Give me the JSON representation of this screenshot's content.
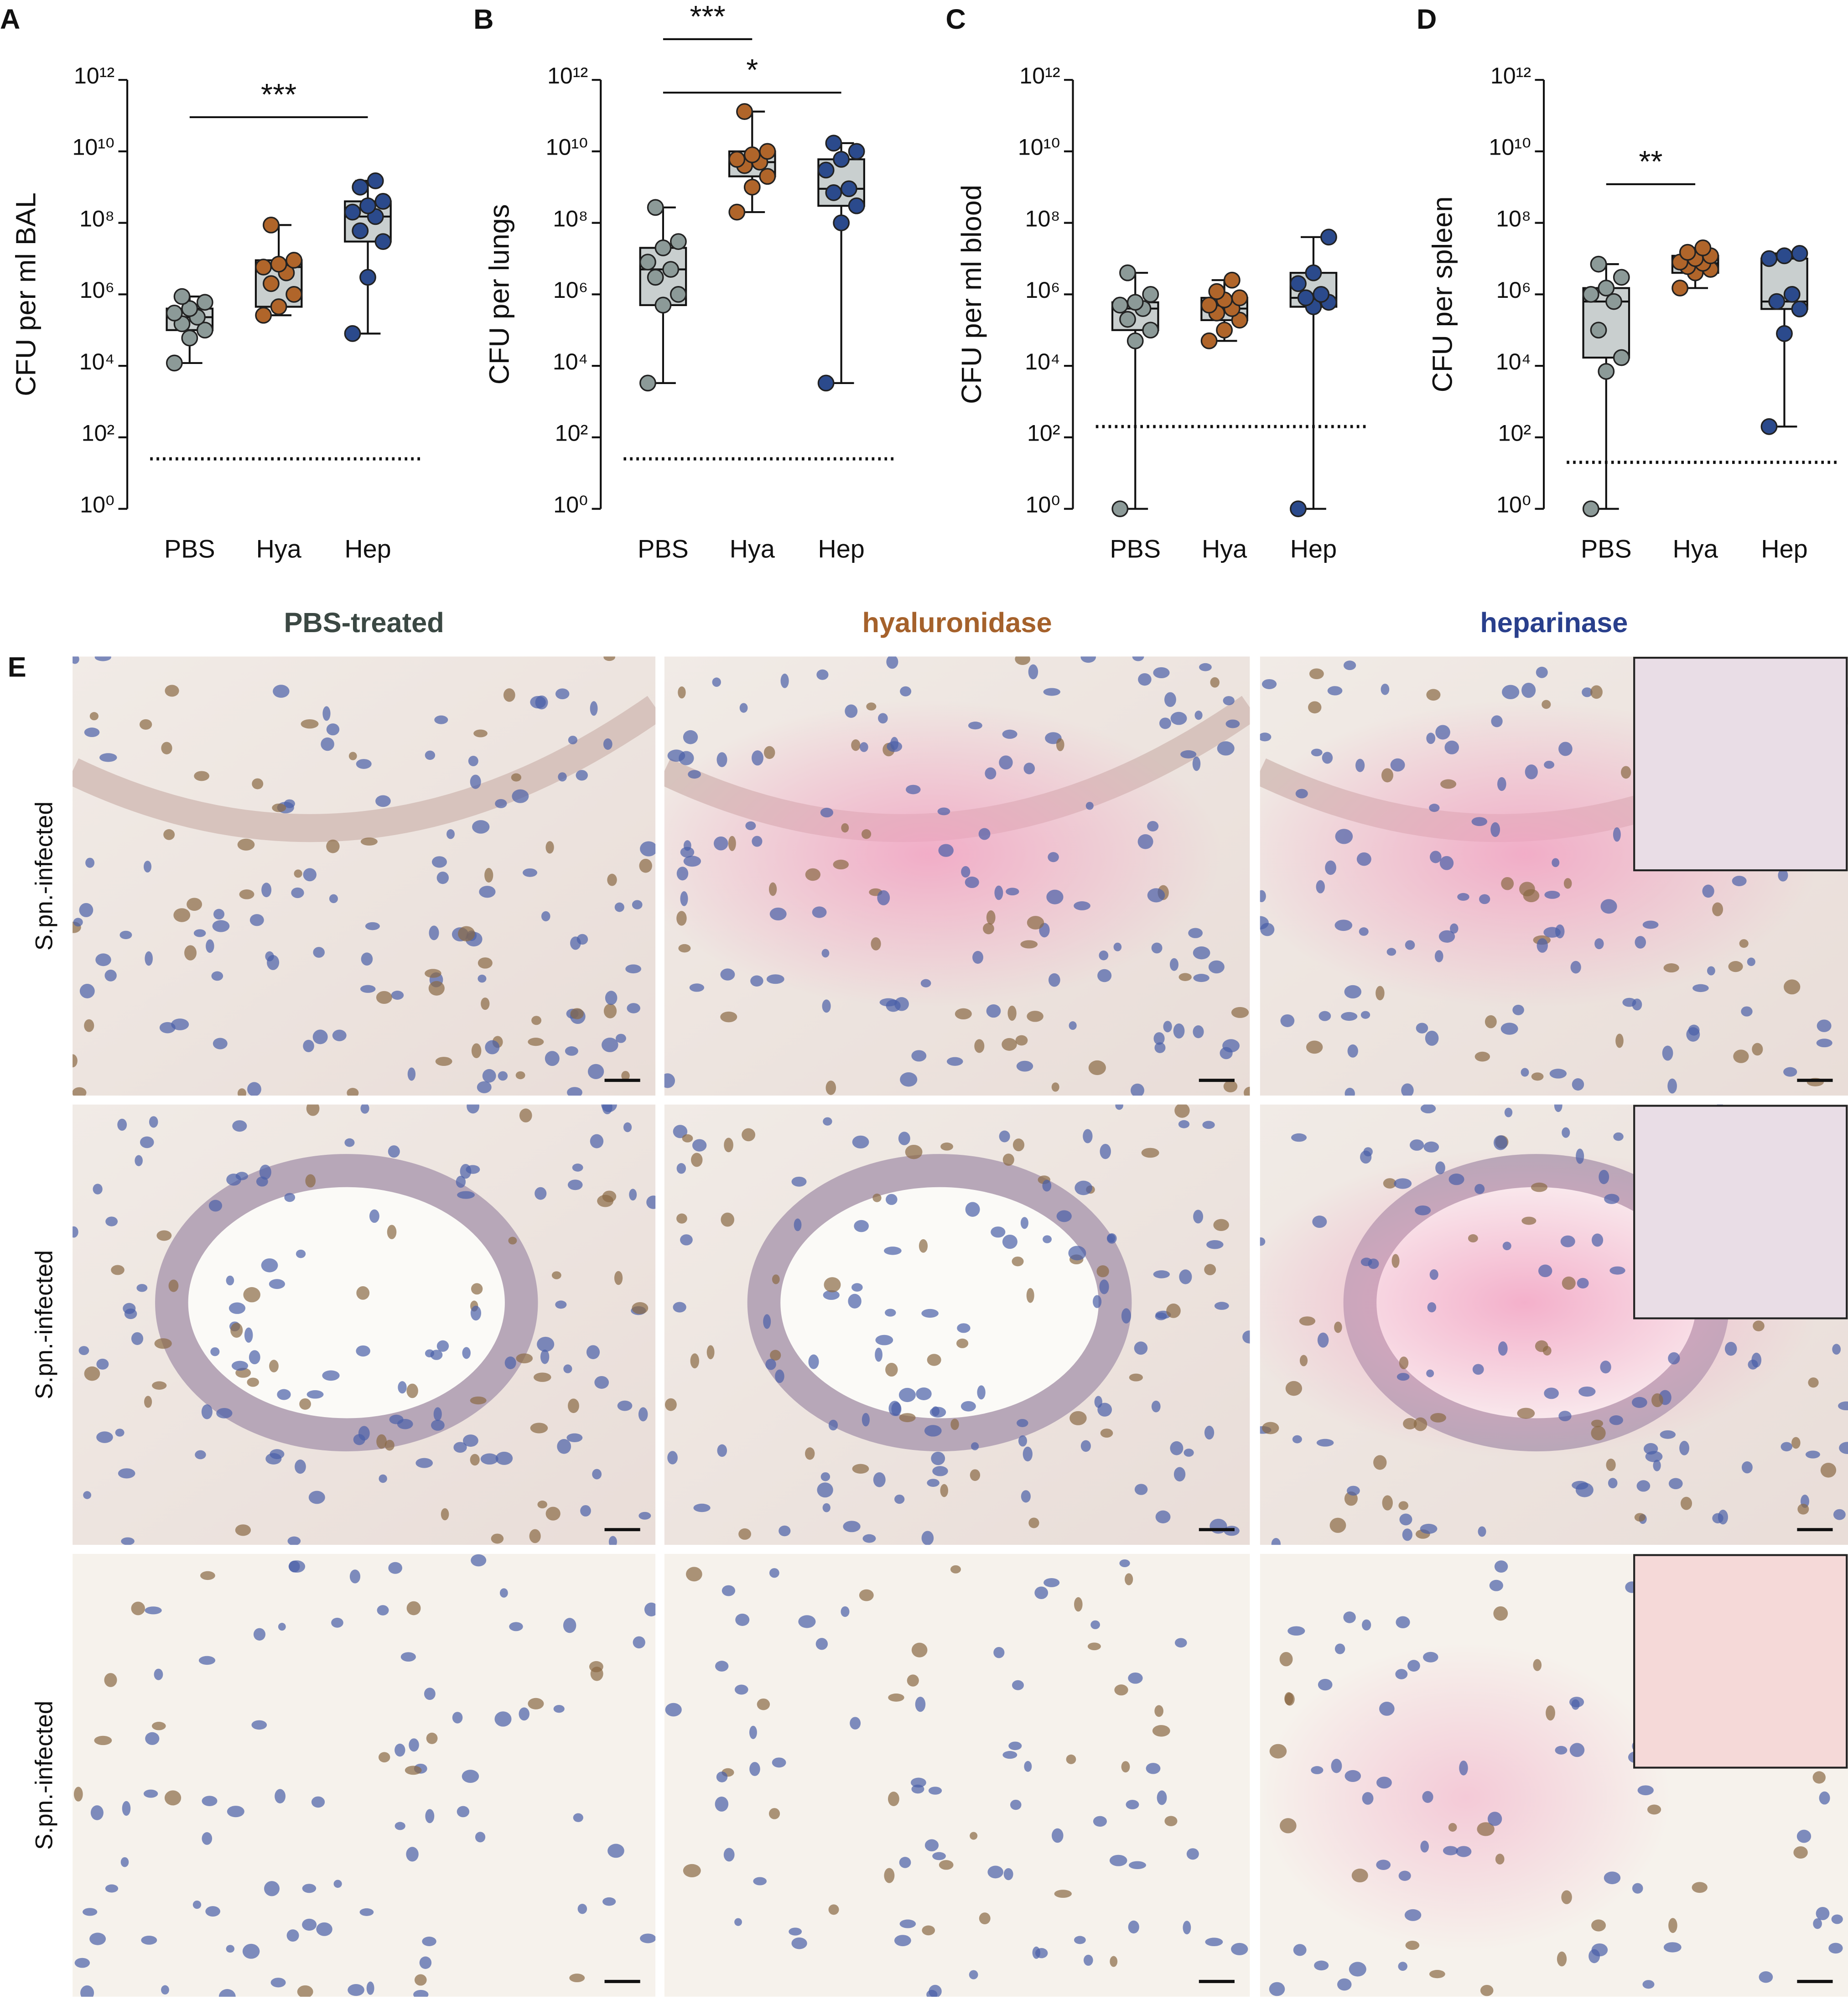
{
  "chart_data": [
    {
      "type": "box",
      "panel": "A",
      "y_label": "CFU per ml BAL",
      "categories": [
        "PBS",
        "Hya",
        "Hep"
      ],
      "colors": [
        "#8c9a98",
        "#b0652a",
        "#2b4a8c"
      ],
      "box_color": "#c9cfcf",
      "log_scale": true,
      "ylim": [
        1,
        1000000000000.0
      ],
      "yticks": [
        {
          "value": 1,
          "label": "10⁰"
        },
        {
          "value": 100.0,
          "label": "10²"
        },
        {
          "value": 10000.0,
          "label": "10⁴"
        },
        {
          "value": 1000000.0,
          "label": "10⁶"
        },
        {
          "value": 100000000.0,
          "label": "10⁸"
        },
        {
          "value": 10000000000.0,
          "label": "10¹⁰"
        },
        {
          "value": 1000000000000.0,
          "label": "10¹²"
        }
      ],
      "detection_limit": 25,
      "significance": [
        {
          "from": "PBS",
          "to": "Hep",
          "label": "***"
        }
      ],
      "boxes": [
        {
          "min": 12000.0,
          "q1": 100000.0,
          "median": 230000.0,
          "q3": 400000.0,
          "max": 870000.0,
          "points": [
            12000.0,
            60000.0,
            100000.0,
            150000.0,
            230000.0,
            300000.0,
            400000.0,
            600000.0,
            870000.0
          ]
        },
        {
          "min": 260000.0,
          "q1": 450000.0,
          "median": 5800000.0,
          "q3": 9000000.0,
          "max": 87000000.0,
          "points": [
            260000.0,
            450000.0,
            1000000.0,
            2000000.0,
            4000000.0,
            5800000.0,
            7000000.0,
            9000000.0,
            87000000.0
          ]
        },
        {
          "min": 80000.0,
          "q1": 30000000.0,
          "median": 150000000.0,
          "q3": 400000000.0,
          "max": 1500000000.0,
          "points": [
            80000.0,
            3000000.0,
            30000000.0,
            60000000.0,
            150000000.0,
            200000000.0,
            300000000.0,
            400000000.0,
            1000000000.0,
            1500000000.0
          ]
        }
      ]
    },
    {
      "type": "box",
      "panel": "B",
      "y_label": "CFU per lungs",
      "categories": [
        "PBS",
        "Hya",
        "Hep"
      ],
      "colors": [
        "#8c9a98",
        "#b0652a",
        "#2b4a8c"
      ],
      "box_color": "#c9cfcf",
      "log_scale": true,
      "ylim": [
        1,
        1000000000000.0
      ],
      "yticks": [
        {
          "value": 1,
          "label": "10⁰"
        },
        {
          "value": 100.0,
          "label": "10²"
        },
        {
          "value": 10000.0,
          "label": "10⁴"
        },
        {
          "value": 1000000.0,
          "label": "10⁶"
        },
        {
          "value": 100000000.0,
          "label": "10⁸"
        },
        {
          "value": 10000000000.0,
          "label": "10¹⁰"
        },
        {
          "value": 1000000000000.0,
          "label": "10¹²"
        }
      ],
      "detection_limit": 25,
      "significance": [
        {
          "from": "PBS",
          "to": "Hep",
          "label": "*"
        },
        {
          "from": "PBS",
          "to": "Hya",
          "label": "***"
        }
      ],
      "boxes": [
        {
          "min": 3300.0,
          "q1": 500000.0,
          "median": 5000000.0,
          "q3": 20000000.0,
          "max": 270000000.0,
          "points": [
            3300.0,
            500000.0,
            1000000.0,
            3000000.0,
            5000000.0,
            8000000.0,
            20000000.0,
            30000000.0,
            270000000.0
          ]
        },
        {
          "min": 200000000.0,
          "q1": 2000000000.0,
          "median": 5000000000.0,
          "q3": 10000000000.0,
          "max": 130000000000.0,
          "points": [
            200000000.0,
            1000000000.0,
            2000000000.0,
            4000000000.0,
            5000000000.0,
            6000000000.0,
            8000000000.0,
            10000000000.0,
            130000000000.0
          ]
        },
        {
          "min": 3300.0,
          "q1": 300000000.0,
          "median": 900000000.0,
          "q3": 6000000000.0,
          "max": 17000000000.0,
          "points": [
            3300.0,
            100000000.0,
            300000000.0,
            700000000.0,
            900000000.0,
            3000000000.0,
            6000000000.0,
            10000000000.0,
            17000000000.0
          ]
        }
      ]
    },
    {
      "type": "box",
      "panel": "C",
      "y_label": "CFU per ml blood",
      "categories": [
        "PBS",
        "Hya",
        "Hep"
      ],
      "colors": [
        "#8c9a98",
        "#b0652a",
        "#2b4a8c"
      ],
      "box_color": "#c9cfcf",
      "log_scale": true,
      "ylim": [
        1,
        1000000000000.0
      ],
      "yticks": [
        {
          "value": 1,
          "label": "10⁰"
        },
        {
          "value": 100.0,
          "label": "10²"
        },
        {
          "value": 10000.0,
          "label": "10⁴"
        },
        {
          "value": 1000000.0,
          "label": "10⁶"
        },
        {
          "value": 100000000.0,
          "label": "10⁸"
        },
        {
          "value": 10000000000.0,
          "label": "10¹⁰"
        },
        {
          "value": 1000000000000.0,
          "label": "10¹²"
        }
      ],
      "detection_limit": 200,
      "significance": [],
      "boxes": [
        {
          "min": 1,
          "q1": 100000.0,
          "median": 400000.0,
          "q3": 600000.0,
          "max": 4000000.0,
          "points": [
            1,
            50000.0,
            100000.0,
            200000.0,
            400000.0,
            500000.0,
            600000.0,
            1000000.0,
            4000000.0
          ]
        },
        {
          "min": 50000.0,
          "q1": 190000.0,
          "median": 400000.0,
          "q3": 800000.0,
          "max": 2500000.0,
          "points": [
            50000.0,
            100000.0,
            190000.0,
            300000.0,
            400000.0,
            500000.0,
            700000.0,
            800000.0,
            1200000.0,
            2500000.0
          ]
        },
        {
          "min": 1,
          "q1": 450000.0,
          "median": 800000.0,
          "q3": 4000000.0,
          "max": 40000000.0,
          "points": [
            1,
            450000.0,
            600000.0,
            800000.0,
            1000000.0,
            2000000.0,
            4000000.0,
            40000000.0
          ]
        }
      ]
    },
    {
      "type": "box",
      "panel": "D",
      "y_label": "CFU per spleen",
      "categories": [
        "PBS",
        "Hya",
        "Hep"
      ],
      "colors": [
        "#8c9a98",
        "#b0652a",
        "#2b4a8c"
      ],
      "box_color": "#c9cfcf",
      "log_scale": true,
      "ylim": [
        1,
        1000000000000.0
      ],
      "yticks": [
        {
          "value": 1,
          "label": "10⁰"
        },
        {
          "value": 100.0,
          "label": "10²"
        },
        {
          "value": 10000.0,
          "label": "10⁴"
        },
        {
          "value": 1000000.0,
          "label": "10⁶"
        },
        {
          "value": 100000000.0,
          "label": "10⁸"
        },
        {
          "value": 10000000000.0,
          "label": "10¹⁰"
        },
        {
          "value": 1000000000000.0,
          "label": "10¹²"
        }
      ],
      "detection_limit": 20,
      "significance": [
        {
          "from": "PBS",
          "to": "Hya",
          "label": "**"
        }
      ],
      "boxes": [
        {
          "min": 1,
          "q1": 17000.0,
          "median": 630000.0,
          "q3": 1500000.0,
          "max": 7000000.0,
          "points": [
            1,
            7000.0,
            17000.0,
            100000.0,
            630000.0,
            1000000.0,
            1500000.0,
            3000000.0,
            7000000.0
          ]
        },
        {
          "min": 1500000.0,
          "q1": 4000000.0,
          "median": 7400000.0,
          "q3": 12000000.0,
          "max": 20000000.0,
          "points": [
            1500000.0,
            4000000.0,
            5000000.0,
            6000000.0,
            7400000.0,
            8000000.0,
            10000000.0,
            12000000.0,
            15000000.0,
            20000000.0
          ]
        },
        {
          "min": 200,
          "q1": 390000.0,
          "median": 630000.0,
          "q3": 10000000.0,
          "max": 14000000.0,
          "points": [
            200,
            80000.0,
            390000.0,
            630000.0,
            1000000.0,
            10000000.0,
            12000000.0,
            14000000.0
          ]
        }
      ]
    }
  ],
  "panel_e": {
    "panel": "E",
    "columns": [
      {
        "label": "PBS-treated",
        "color": "#3b4843"
      },
      {
        "label": "hyaluronidase",
        "color": "#a5612b"
      },
      {
        "label": "heparinase",
        "color": "#293f8c"
      }
    ],
    "rows": [
      "S.pn.-infected",
      "S.pn.-infected",
      "S.pn.-infected"
    ]
  }
}
